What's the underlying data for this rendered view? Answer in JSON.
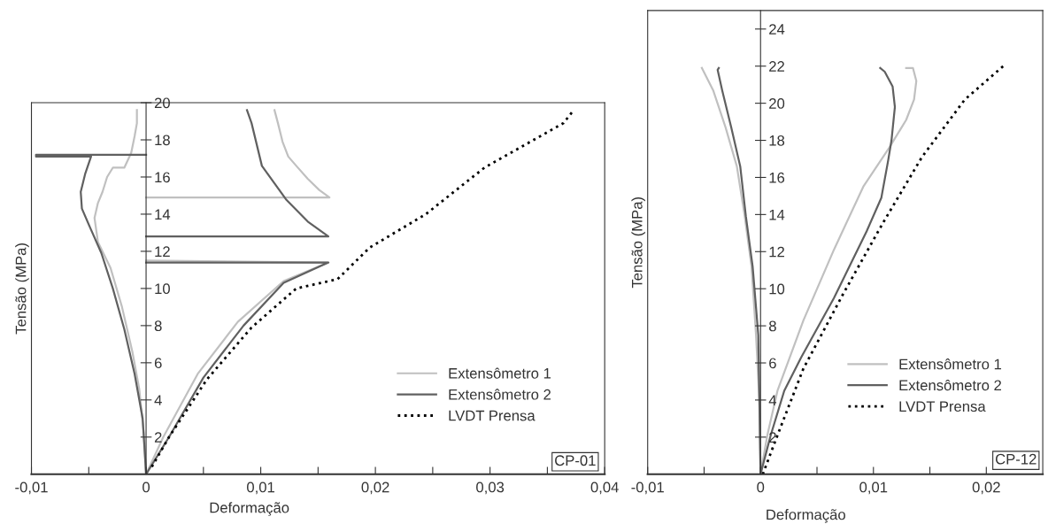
{
  "chart_data": [
    {
      "type": "line",
      "xlabel": "Deformação",
      "ylabel": "Tensão (MPa)",
      "annotations": [
        "CP-01"
      ],
      "xlim": [
        -0.01,
        0.04
      ],
      "ylim": [
        0,
        20
      ],
      "xticks": [
        {
          "value": -0.01,
          "label": "-0,01"
        },
        {
          "value": -0.005,
          "label": null
        },
        0,
        {
          "value": 0.005,
          "label": null
        },
        {
          "value": 0.01,
          "label": "0,01"
        },
        {
          "value": 0.015,
          "label": null
        },
        {
          "value": 0.02,
          "label": "0,02"
        },
        {
          "value": 0.025,
          "label": null
        },
        {
          "value": 0.03,
          "label": "0,03"
        },
        {
          "value": 0.035,
          "label": null
        },
        {
          "value": 0.04,
          "label": "0,04"
        }
      ],
      "yticks": [
        2,
        4,
        6,
        8,
        10,
        12,
        14,
        16,
        18,
        20
      ],
      "legend": "bottom right",
      "grid": false,
      "series": [
        {
          "name": "Extensômetro 1",
          "color": "#c0c0c0",
          "line_style": "solid",
          "x": [
            0,
            -0.0002,
            -0.0006,
            -0.0012,
            -0.0021,
            -0.0031,
            -0.0042,
            -0.0045,
            -0.0042,
            -0.0038,
            -0.0034,
            -0.0029,
            -0.0019,
            -0.0013,
            -0.001,
            -0.0008,
            -0.0008,
            null,
            0,
            0.0015,
            0.0045,
            0.008,
            0.012,
            0.0159,
            0,
            null,
            0,
            0.016,
            0.0151,
            0.0141,
            0.0131,
            0.0124,
            0.0119,
            0.0115,
            0.0112
          ],
          "values": [
            0,
            2.2,
            4.6,
            6.6,
            9.0,
            11.1,
            12.5,
            13.8,
            14.6,
            15.2,
            16.0,
            16.5,
            16.5,
            17.3,
            18.2,
            18.9,
            19.6,
            null,
            0,
            2.0,
            5.4,
            8.2,
            10.4,
            11.4,
            11.5,
            null,
            14.9,
            14.9,
            15.3,
            15.9,
            16.6,
            17.1,
            17.9,
            18.9,
            19.6
          ]
        },
        {
          "name": "Extensômetro 2",
          "color": "#606060",
          "line_style": "solid",
          "x": [
            0,
            -0.0003,
            -0.001,
            -0.0019,
            -0.0029,
            -0.0039,
            -0.0049,
            -0.0056,
            -0.0057,
            -0.0053,
            -0.0048,
            -0.0096,
            -0.0096,
            0,
            null,
            0,
            0.002,
            0.005,
            0.0085,
            0.012,
            0.0159,
            0,
            null,
            0,
            0.0159,
            0.0141,
            0.0122,
            0.0101,
            0.0092,
            0.0088
          ],
          "values": [
            0,
            3.0,
            5.4,
            7.8,
            10.0,
            11.9,
            13.3,
            14.3,
            15.2,
            16.2,
            17.1,
            17.1,
            17.2,
            17.2,
            null,
            0,
            2.0,
            5.2,
            8.0,
            10.3,
            11.4,
            11.4,
            null,
            12.8,
            12.8,
            13.6,
            14.8,
            16.6,
            18.9,
            19.6
          ]
        },
        {
          "name": "LVDT Prensa",
          "color": "#000000",
          "line_style": "dotted",
          "x": [
            0.0005,
            0.002,
            0.0053,
            0.0092,
            0.0131,
            0.0167,
            0.0195,
            0.0244,
            0.0295,
            0.0364,
            0.0373
          ],
          "values": [
            0.4,
            2.0,
            5.1,
            7.9,
            10.0,
            10.5,
            12.2,
            14.0,
            16.5,
            18.9,
            19.6
          ]
        }
      ]
    },
    {
      "type": "line",
      "xlabel": "Deformação",
      "ylabel": "Tensão (MPa)",
      "annotations": [
        "CP-12"
      ],
      "xlim": [
        -0.01,
        0.025
      ],
      "ylim": [
        0,
        25
      ],
      "xticks": [
        {
          "value": -0.01,
          "label": "-0,01"
        },
        {
          "value": -0.005,
          "label": null
        },
        0,
        {
          "value": 0.005,
          "label": null
        },
        {
          "value": 0.01,
          "label": "0,01"
        },
        {
          "value": 0.015,
          "label": null
        },
        {
          "value": 0.02,
          "label": "0,02"
        }
      ],
      "yticks": [
        2,
        4,
        6,
        8,
        10,
        12,
        14,
        16,
        18,
        20,
        22,
        24
      ],
      "legend": "bottom right",
      "grid": false,
      "series": [
        {
          "name": "Extensômetro 1",
          "color": "#c0c0c0",
          "line_style": "solid",
          "x": [
            0,
            -0.0001,
            -0.0004,
            -0.0008,
            -0.0014,
            -0.0021,
            -0.0031,
            -0.0042,
            -0.0052,
            null,
            0,
            0.0006,
            0.0015,
            0.0038,
            0.0065,
            0.0091,
            0.0114,
            0.0129,
            0.0136,
            0.0138,
            0.0135,
            0.0129
          ],
          "values": [
            0,
            3.9,
            7.5,
            11.2,
            13.9,
            16.6,
            18.7,
            20.7,
            21.9,
            null,
            0,
            2.1,
            4.5,
            8.3,
            12.1,
            15.5,
            17.6,
            19.1,
            20.2,
            21.2,
            21.9,
            21.9
          ]
        },
        {
          "name": "Extensômetro 2",
          "color": "#606060",
          "line_style": "solid",
          "x": [
            0,
            -0.0001,
            -0.0002,
            -0.0007,
            -0.0013,
            -0.0018,
            -0.0026,
            -0.0034,
            -0.0038,
            -0.0037,
            null,
            0,
            0.0009,
            0.0021,
            0.0036,
            0.0065,
            0.0094,
            0.0107,
            0.0113,
            0.0116,
            0.0119,
            0.0117,
            0.011,
            0.0106
          ],
          "values": [
            0,
            3.9,
            7.5,
            11.2,
            13.9,
            16.6,
            18.7,
            20.7,
            21.8,
            21.9,
            null,
            0,
            2.1,
            4.5,
            6.3,
            9.5,
            13.1,
            14.9,
            16.9,
            18.0,
            19.8,
            20.9,
            21.7,
            21.9
          ]
        },
        {
          "name": "LVDT Prensa",
          "color": "#000000",
          "line_style": "dotted",
          "x": [
            0.0002,
            0.0015,
            0.0038,
            0.0073,
            0.0108,
            0.0143,
            0.0181,
            0.0215
          ],
          "values": [
            0,
            2.1,
            5.7,
            9.7,
            13.5,
            17.1,
            20.2,
            22.0
          ]
        }
      ]
    }
  ]
}
